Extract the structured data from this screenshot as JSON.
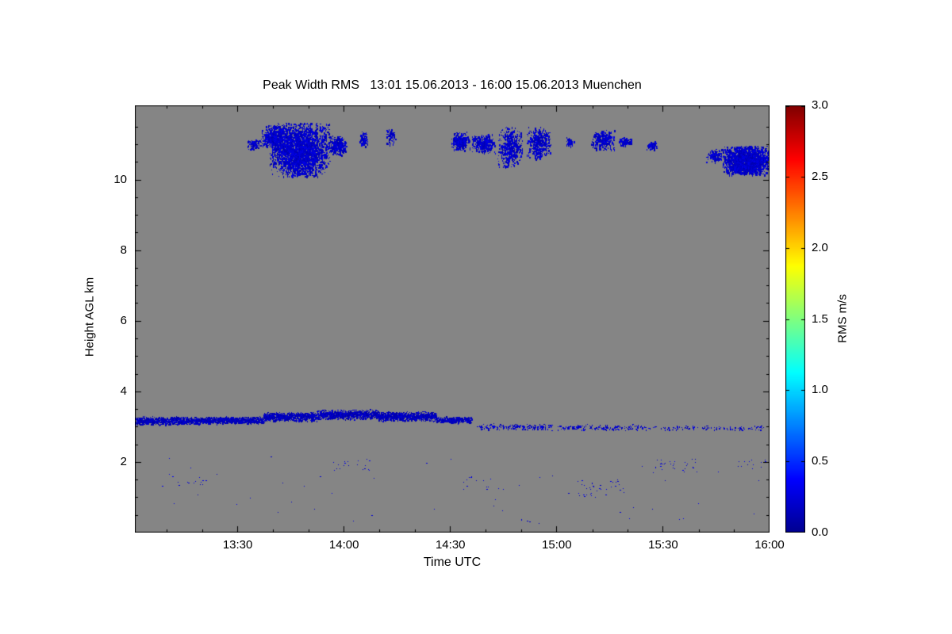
{
  "chart_data": {
    "type": "heatmap",
    "title": "Peak Width RMS   13:01 15.06.2013 - 16:00 15.06.2013 Muenchen",
    "xlabel": "Time UTC",
    "ylabel": "Height AGL km",
    "plot_bg": "#858585",
    "x_axis": {
      "start_hours": 13.0167,
      "end_hours": 16.0,
      "minor_tick_minutes": 10,
      "ticks": [
        {
          "hours": 13.5,
          "label": "13:30"
        },
        {
          "hours": 14.0,
          "label": "14:00"
        },
        {
          "hours": 14.5,
          "label": "14:30"
        },
        {
          "hours": 15.0,
          "label": "15:00"
        },
        {
          "hours": 15.5,
          "label": "15:30"
        },
        {
          "hours": 16.0,
          "label": "16:00"
        }
      ]
    },
    "y_axis": {
      "min": 0,
      "max": 12.1,
      "minor_step": 0.5,
      "ticks": [
        {
          "value": 2,
          "label": "2"
        },
        {
          "value": 4,
          "label": "4"
        },
        {
          "value": 6,
          "label": "6"
        },
        {
          "value": 8,
          "label": "8"
        },
        {
          "value": 10,
          "label": "10"
        }
      ]
    },
    "colorbar": {
      "label": "RMS m/s",
      "min": 0.0,
      "max": 3.0,
      "colormap": "jet",
      "ticks": [
        {
          "value": 0.0,
          "label": "0.0"
        },
        {
          "value": 0.5,
          "label": "0.5"
        },
        {
          "value": 1.0,
          "label": "1.0"
        },
        {
          "value": 1.5,
          "label": "1.5"
        },
        {
          "value": 2.0,
          "label": "2.0"
        },
        {
          "value": 2.5,
          "label": "2.5"
        },
        {
          "value": 3.0,
          "label": "3.0"
        }
      ],
      "stops": [
        {
          "pos": 0.0,
          "color": "#00008f"
        },
        {
          "pos": 0.125,
          "color": "#0000ff"
        },
        {
          "pos": 0.375,
          "color": "#00ffff"
        },
        {
          "pos": 0.625,
          "color": "#ffff00"
        },
        {
          "pos": 0.875,
          "color": "#ff0000"
        },
        {
          "pos": 1.0,
          "color": "#800000"
        }
      ]
    },
    "features": [
      {
        "kind": "blob",
        "t0": 13.54,
        "t1": 13.61,
        "h0": 10.85,
        "h1": 11.15,
        "n": 90,
        "rms": 0.2
      },
      {
        "kind": "blob",
        "t0": 13.61,
        "t1": 13.73,
        "h0": 10.9,
        "h1": 11.55,
        "n": 450,
        "rms": 0.2
      },
      {
        "kind": "blob",
        "t0": 13.65,
        "t1": 13.93,
        "h0": 10.1,
        "h1": 11.6,
        "n": 2600,
        "rms": 0.2
      },
      {
        "kind": "blob",
        "t0": 13.93,
        "t1": 14.01,
        "h0": 10.7,
        "h1": 11.25,
        "n": 260,
        "rms": 0.2
      },
      {
        "kind": "blob",
        "t0": 14.07,
        "t1": 14.11,
        "h0": 10.95,
        "h1": 11.35,
        "n": 80,
        "rms": 0.2
      },
      {
        "kind": "blob",
        "t0": 14.2,
        "t1": 14.24,
        "h0": 11.0,
        "h1": 11.45,
        "n": 70,
        "rms": 0.2
      },
      {
        "kind": "blob",
        "t0": 14.5,
        "t1": 14.59,
        "h0": 10.85,
        "h1": 11.35,
        "n": 300,
        "rms": 0.2
      },
      {
        "kind": "blob",
        "t0": 14.6,
        "t1": 14.71,
        "h0": 10.75,
        "h1": 11.3,
        "n": 280,
        "rms": 0.2
      },
      {
        "kind": "blob",
        "t0": 14.72,
        "t1": 14.84,
        "h0": 10.35,
        "h1": 11.5,
        "n": 450,
        "rms": 0.2
      },
      {
        "kind": "blob",
        "t0": 14.86,
        "t1": 14.97,
        "h0": 10.6,
        "h1": 11.5,
        "n": 400,
        "rms": 0.2
      },
      {
        "kind": "blob",
        "t0": 15.04,
        "t1": 15.08,
        "h0": 10.95,
        "h1": 11.2,
        "n": 60,
        "rms": 0.2
      },
      {
        "kind": "blob",
        "t0": 15.16,
        "t1": 15.27,
        "h0": 10.85,
        "h1": 11.4,
        "n": 260,
        "rms": 0.2
      },
      {
        "kind": "blob",
        "t0": 15.29,
        "t1": 15.35,
        "h0": 10.95,
        "h1": 11.2,
        "n": 90,
        "rms": 0.2
      },
      {
        "kind": "blob",
        "t0": 15.42,
        "t1": 15.47,
        "h0": 10.85,
        "h1": 11.1,
        "n": 70,
        "rms": 0.2
      },
      {
        "kind": "blob",
        "t0": 15.7,
        "t1": 15.78,
        "h0": 10.5,
        "h1": 10.9,
        "n": 130,
        "rms": 0.2
      },
      {
        "kind": "blob",
        "t0": 15.78,
        "t1": 16.0,
        "h0": 10.15,
        "h1": 10.95,
        "n": 2200,
        "rms": 0.2
      },
      {
        "kind": "band",
        "t0": 13.02,
        "t1": 13.32,
        "h0": 3.05,
        "h1": 3.3,
        "n": 900,
        "rms": 0.15
      },
      {
        "kind": "band",
        "t0": 13.32,
        "t1": 13.62,
        "h0": 3.08,
        "h1": 3.3,
        "n": 900,
        "rms": 0.15
      },
      {
        "kind": "band",
        "t0": 13.62,
        "t1": 13.87,
        "h0": 3.15,
        "h1": 3.42,
        "n": 800,
        "rms": 0.15
      },
      {
        "kind": "band",
        "t0": 13.87,
        "t1": 14.16,
        "h0": 3.2,
        "h1": 3.5,
        "n": 900,
        "rms": 0.15
      },
      {
        "kind": "band",
        "t0": 14.16,
        "t1": 14.43,
        "h0": 3.15,
        "h1": 3.45,
        "n": 850,
        "rms": 0.15
      },
      {
        "kind": "band",
        "t0": 14.43,
        "t1": 14.6,
        "h0": 3.1,
        "h1": 3.3,
        "n": 350,
        "rms": 0.15
      },
      {
        "kind": "band",
        "t0": 14.62,
        "t1": 14.98,
        "h0": 2.9,
        "h1": 3.1,
        "n": 170,
        "rms": 0.2
      },
      {
        "kind": "band",
        "t0": 15.0,
        "t1": 15.4,
        "h0": 2.9,
        "h1": 3.08,
        "n": 160,
        "rms": 0.2
      },
      {
        "kind": "band",
        "t0": 15.4,
        "t1": 15.97,
        "h0": 2.9,
        "h1": 3.05,
        "n": 120,
        "rms": 0.2
      },
      {
        "kind": "speckle",
        "t0": 13.1,
        "t1": 13.35,
        "h0": 1.3,
        "h1": 1.7,
        "n": 12,
        "rms": 0.25
      },
      {
        "kind": "speckle",
        "t0": 13.95,
        "t1": 14.12,
        "h0": 1.75,
        "h1": 2.1,
        "n": 20,
        "rms": 0.25
      },
      {
        "kind": "speckle",
        "t0": 14.55,
        "t1": 14.75,
        "h0": 1.2,
        "h1": 1.6,
        "n": 14,
        "rms": 0.25
      },
      {
        "kind": "speckle",
        "t0": 15.05,
        "t1": 15.32,
        "h0": 1.0,
        "h1": 1.5,
        "n": 38,
        "rms": 0.25
      },
      {
        "kind": "speckle",
        "t0": 15.45,
        "t1": 15.66,
        "h0": 1.7,
        "h1": 2.1,
        "n": 32,
        "rms": 0.25
      },
      {
        "kind": "speckle",
        "t0": 15.85,
        "t1": 15.98,
        "h0": 1.8,
        "h1": 2.1,
        "n": 12,
        "rms": 0.25
      },
      {
        "kind": "speckle",
        "t0": 13.05,
        "t1": 15.98,
        "h0": 0.3,
        "h1": 2.3,
        "n": 45,
        "rms": 0.25
      },
      {
        "kind": "speckle",
        "t0": 14.8,
        "t1": 14.92,
        "h0": 0.2,
        "h1": 0.38,
        "n": 6,
        "rms": 0.25
      }
    ]
  }
}
